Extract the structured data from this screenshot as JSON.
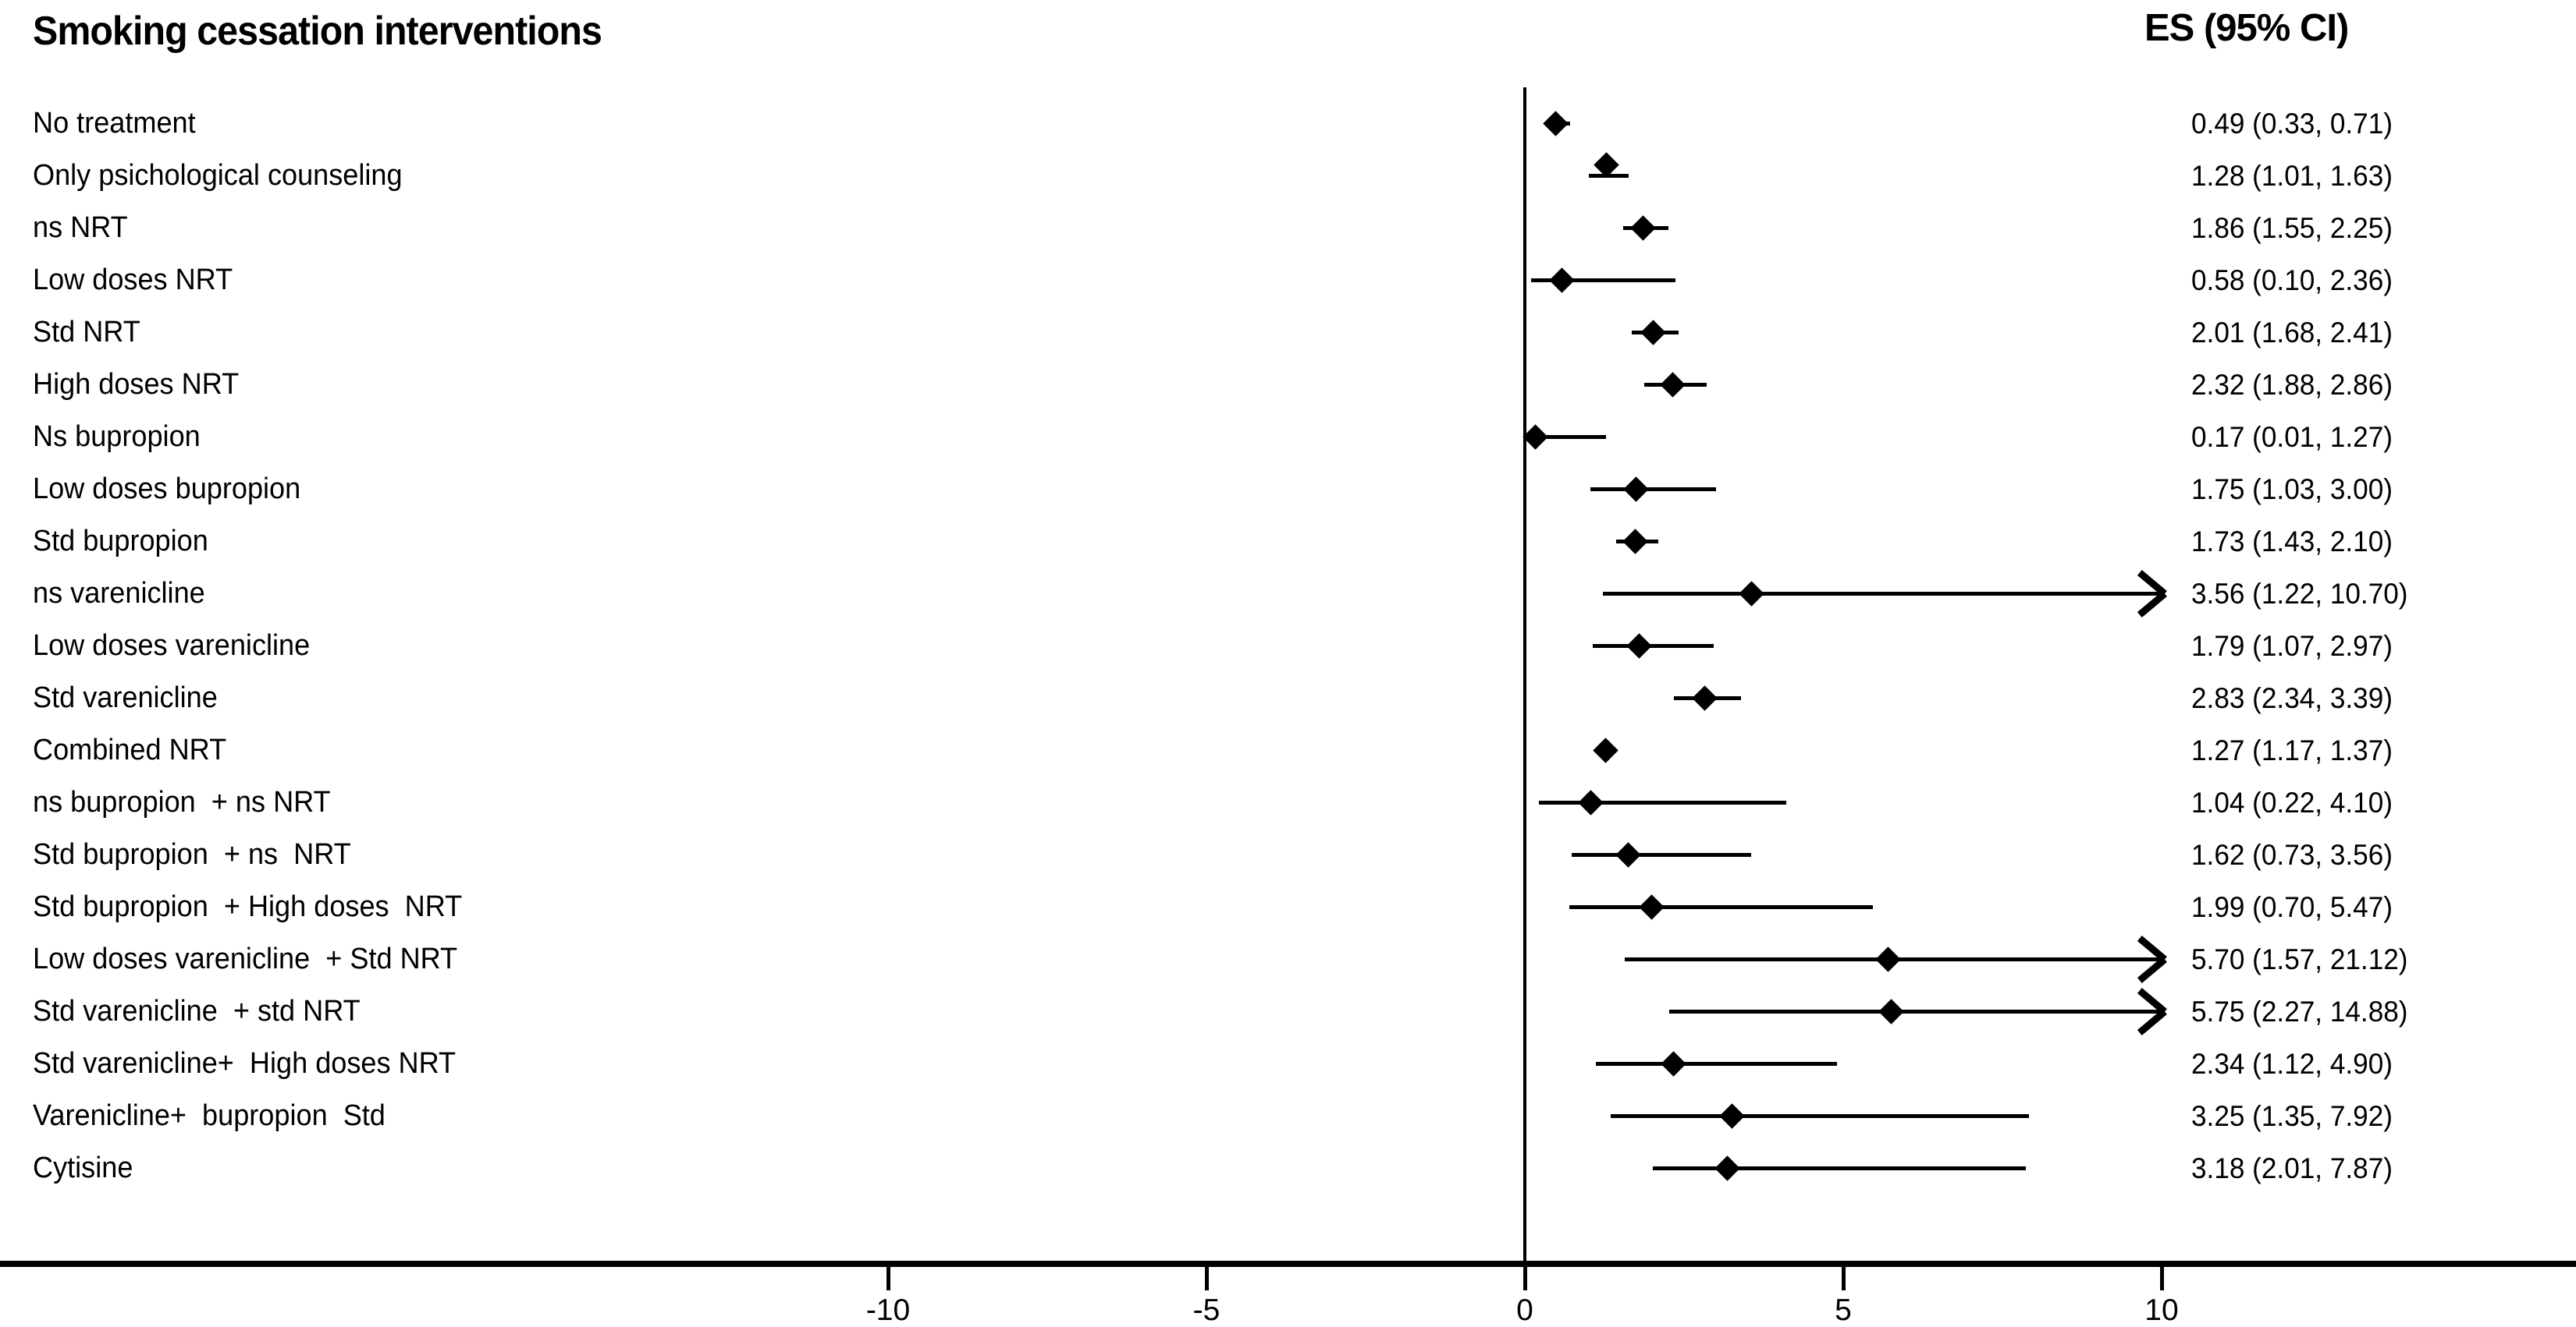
{
  "header": {
    "title": "Smoking cessation interventions",
    "es_header": "ES (95% CI)"
  },
  "colors": {
    "foreground": "#000000",
    "background": "#ffffff"
  },
  "chart_data": {
    "type": "scatter",
    "subtype": "forest-plot",
    "title": "Smoking cessation interventions",
    "es_column_header": "ES (95% CI)",
    "xlabel": "",
    "ylabel": "",
    "grid": false,
    "x_ticks": [
      -10,
      -5,
      0,
      5,
      10
    ],
    "zero_reference": 0,
    "x_clip_max": 10,
    "rows": [
      {
        "label": "No treatment",
        "es": 0.49,
        "ci_low": 0.33,
        "ci_high": 0.71,
        "es_text": "0.49 (0.33, 0.71)",
        "arrow": false,
        "diamond_dy": 0
      },
      {
        "label": "Only psichological counseling",
        "es": 1.28,
        "ci_low": 1.01,
        "ci_high": 1.63,
        "es_text": "1.28 (1.01, 1.63)",
        "arrow": false,
        "diamond_dy": -14
      },
      {
        "label": "ns NRT",
        "es": 1.86,
        "ci_low": 1.55,
        "ci_high": 2.25,
        "es_text": "1.86 (1.55, 2.25)",
        "arrow": false,
        "diamond_dy": 0
      },
      {
        "label": "Low doses NRT",
        "es": 0.58,
        "ci_low": 0.1,
        "ci_high": 2.36,
        "es_text": "0.58 (0.10, 2.36)",
        "arrow": false,
        "diamond_dy": 0
      },
      {
        "label": "Std NRT",
        "es": 2.01,
        "ci_low": 1.68,
        "ci_high": 2.41,
        "es_text": "2.01 (1.68, 2.41)",
        "arrow": false,
        "diamond_dy": 0
      },
      {
        "label": "High doses NRT",
        "es": 2.32,
        "ci_low": 1.88,
        "ci_high": 2.86,
        "es_text": "2.32 (1.88, 2.86)",
        "arrow": false,
        "diamond_dy": 0
      },
      {
        "label": "Ns bupropion",
        "es": 0.17,
        "ci_low": 0.01,
        "ci_high": 1.27,
        "es_text": "0.17 (0.01, 1.27)",
        "arrow": false,
        "diamond_dy": 0
      },
      {
        "label": "Low doses bupropion",
        "es": 1.75,
        "ci_low": 1.03,
        "ci_high": 3.0,
        "es_text": "1.75 (1.03, 3.00)",
        "arrow": false,
        "diamond_dy": 0
      },
      {
        "label": "Std bupropion",
        "es": 1.73,
        "ci_low": 1.43,
        "ci_high": 2.1,
        "es_text": "1.73 (1.43, 2.10)",
        "arrow": false,
        "diamond_dy": 0
      },
      {
        "label": "ns varenicline",
        "es": 3.56,
        "ci_low": 1.22,
        "ci_high": 10.7,
        "es_text": "3.56 (1.22, 10.70)",
        "arrow": true,
        "diamond_dy": 0
      },
      {
        "label": "Low doses varenicline",
        "es": 1.79,
        "ci_low": 1.07,
        "ci_high": 2.97,
        "es_text": "1.79 (1.07, 2.97)",
        "arrow": false,
        "diamond_dy": 0
      },
      {
        "label": "Std varenicline",
        "es": 2.83,
        "ci_low": 2.34,
        "ci_high": 3.39,
        "es_text": "2.83 (2.34, 3.39)",
        "arrow": false,
        "diamond_dy": 0
      },
      {
        "label": "Combined NRT",
        "es": 1.27,
        "ci_low": 1.17,
        "ci_high": 1.37,
        "es_text": "1.27 (1.17, 1.37)",
        "arrow": false,
        "diamond_dy": 0
      },
      {
        "label": "ns bupropion  + ns NRT",
        "es": 1.04,
        "ci_low": 0.22,
        "ci_high": 4.1,
        "es_text": "1.04 (0.22, 4.10)",
        "arrow": false,
        "diamond_dy": 0
      },
      {
        "label": "Std bupropion  + ns  NRT",
        "es": 1.62,
        "ci_low": 0.73,
        "ci_high": 3.56,
        "es_text": "1.62 (0.73, 3.56)",
        "arrow": false,
        "diamond_dy": 0
      },
      {
        "label": "Std bupropion  + High doses  NRT",
        "es": 1.99,
        "ci_low": 0.7,
        "ci_high": 5.47,
        "es_text": "1.99 (0.70, 5.47)",
        "arrow": false,
        "diamond_dy": 0
      },
      {
        "label": "Low doses varenicline  + Std NRT",
        "es": 5.7,
        "ci_low": 1.57,
        "ci_high": 21.12,
        "es_text": "5.70 (1.57, 21.12)",
        "arrow": true,
        "diamond_dy": 0
      },
      {
        "label": "Std varenicline  + std NRT",
        "es": 5.75,
        "ci_low": 2.27,
        "ci_high": 14.88,
        "es_text": "5.75 (2.27, 14.88)",
        "arrow": true,
        "diamond_dy": 0
      },
      {
        "label": "Std varenicline+  High doses NRT",
        "es": 2.34,
        "ci_low": 1.12,
        "ci_high": 4.9,
        "es_text": "2.34 (1.12, 4.90)",
        "arrow": false,
        "diamond_dy": 0
      },
      {
        "label": "Varenicline+  bupropion  Std",
        "es": 3.25,
        "ci_low": 1.35,
        "ci_high": 7.92,
        "es_text": "3.25 (1.35, 7.92)",
        "arrow": false,
        "diamond_dy": 0
      },
      {
        "label": "Cytisine",
        "es": 3.18,
        "ci_low": 2.01,
        "ci_high": 7.87,
        "es_text": "3.18 (2.01, 7.87)",
        "arrow": false,
        "diamond_dy": 0
      }
    ]
  }
}
